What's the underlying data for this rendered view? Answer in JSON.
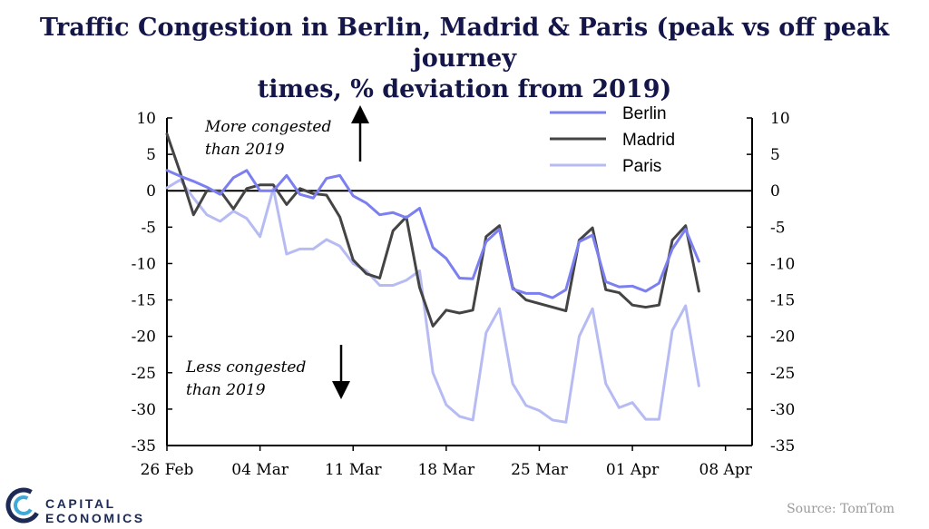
{
  "title": {
    "line1": "Traffic Congestion in Berlin, Madrid & Paris (peak vs off peak journey",
    "line2": "times, % deviation from 2019)"
  },
  "source": "Source: TomTom",
  "logo": {
    "text": "CAPITAL ECONOMICS",
    "mark": "capital-economics-logo"
  },
  "chart_data": {
    "type": "line",
    "x_tick_labels": [
      "26 Feb",
      "04 Mar",
      "11 Mar",
      "18 Mar",
      "25 Mar",
      "01 Apr",
      "08 Apr"
    ],
    "x_range_days": [
      0,
      44
    ],
    "ylim": [
      -35,
      10
    ],
    "y_ticks": [
      10,
      5,
      0,
      -5,
      -10,
      -15,
      -20,
      -25,
      -30,
      -35
    ],
    "zero_line": true,
    "grid": false,
    "legend_position": "top-right",
    "annotations": {
      "up": [
        "More congested",
        "than 2019"
      ],
      "down": [
        "Less congested",
        "than 2019"
      ]
    },
    "series": [
      {
        "name": "Berlin",
        "color": "#7b7ff0",
        "values": [
          2.8,
          2,
          1.3,
          0.5,
          -0.5,
          1.8,
          2.8,
          0,
          0,
          2.1,
          -0.5,
          -1,
          1.7,
          2.1,
          -0.7,
          -1.7,
          -3.3,
          -3,
          -3.7,
          -2.4,
          -7.8,
          -9.3,
          -12,
          -12.1,
          -7,
          -5.3,
          -13.5,
          -14.1,
          -14.1,
          -14.7,
          -13.6,
          -7,
          -6.1,
          -12.5,
          -13.2,
          -13.1,
          -13.8,
          -12.7,
          -8,
          -5.3,
          -9.7
        ]
      },
      {
        "name": "Madrid",
        "color": "#444444",
        "values": [
          7.8,
          2.5,
          -3.3,
          0,
          0,
          -2.5,
          0.3,
          0.8,
          0.8,
          -1.9,
          0.3,
          -0.4,
          -0.6,
          -3.6,
          -9.5,
          -11.4,
          -12,
          -5.5,
          -3.6,
          -13.3,
          -18.6,
          -16.4,
          -16.8,
          -16.4,
          -6.3,
          -4.8,
          -13.3,
          -15,
          -15.5,
          -16,
          -16.5,
          -6.8,
          -5.1,
          -13.6,
          -14,
          -15.7,
          -16,
          -15.7,
          -6.8,
          -4.8,
          -13.8
        ]
      },
      {
        "name": "Paris",
        "color": "#b7bbf3",
        "values": [
          0.4,
          1.5,
          -1,
          -3.3,
          -4.2,
          -2.8,
          -3.8,
          -6.3,
          0.3,
          -8.7,
          -8,
          -8,
          -6.7,
          -7.6,
          -10,
          -11,
          -13,
          -13,
          -12.3,
          -11,
          -25,
          -29.4,
          -31,
          -31.5,
          -19.5,
          -16.2,
          -26.5,
          -29.5,
          -30.2,
          -31.5,
          -31.8,
          -20,
          -16.2,
          -26.5,
          -29.8,
          -29.1,
          -31.4,
          -31.4,
          -19.2,
          -15.8,
          -26.8
        ]
      }
    ]
  }
}
